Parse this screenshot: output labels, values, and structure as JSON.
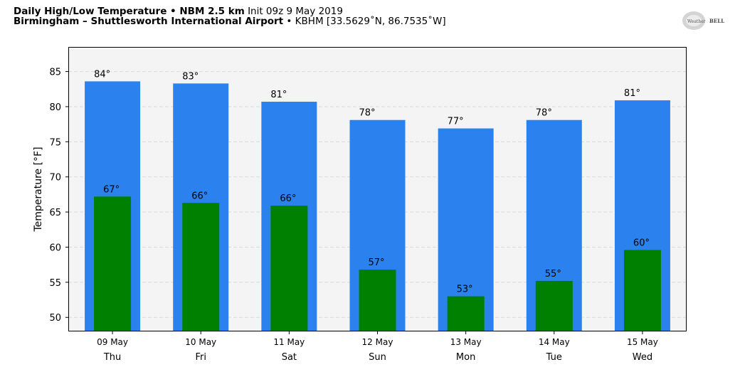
{
  "header": {
    "line1_bold": "Daily High/Low Temperature • NBM 2.5 km",
    "line1_rest": "Init 09z 9 May 2019",
    "line2_bold": "Birmingham – Shuttlesworth International Airport",
    "line2_rest": " • KBHM [33.5629˚N, 86.7535˚W]"
  },
  "logo": {
    "text_left": "Weather",
    "text_right": "BELL"
  },
  "colors": {
    "high": "#2b82ee",
    "low": "#008000",
    "plot_bg": "#f4f4f4",
    "grid": "#d9d9d9"
  },
  "chart_data": {
    "type": "bar",
    "ylabel": "Temperature [°F]",
    "ylim": [
      48,
      88.5
    ],
    "yticks": [
      50,
      55,
      60,
      65,
      70,
      75,
      80,
      85
    ],
    "grid": true,
    "dates": [
      "09 May",
      "10 May",
      "11 May",
      "12 May",
      "13 May",
      "14 May",
      "15 May"
    ],
    "days": [
      "Thu",
      "Fri",
      "Sat",
      "Sun",
      "Mon",
      "Tue",
      "Wed"
    ],
    "series": [
      {
        "key": "high",
        "values": [
          83.6,
          83.3,
          80.7,
          78.1,
          76.9,
          78.1,
          80.9
        ],
        "labels": [
          "84°",
          "83°",
          "81°",
          "78°",
          "77°",
          "78°",
          "81°"
        ]
      },
      {
        "key": "low",
        "values": [
          67.2,
          66.3,
          65.9,
          56.8,
          53.0,
          55.2,
          59.6
        ],
        "labels": [
          "67°",
          "66°",
          "66°",
          "57°",
          "53°",
          "55°",
          "60°"
        ]
      }
    ]
  }
}
